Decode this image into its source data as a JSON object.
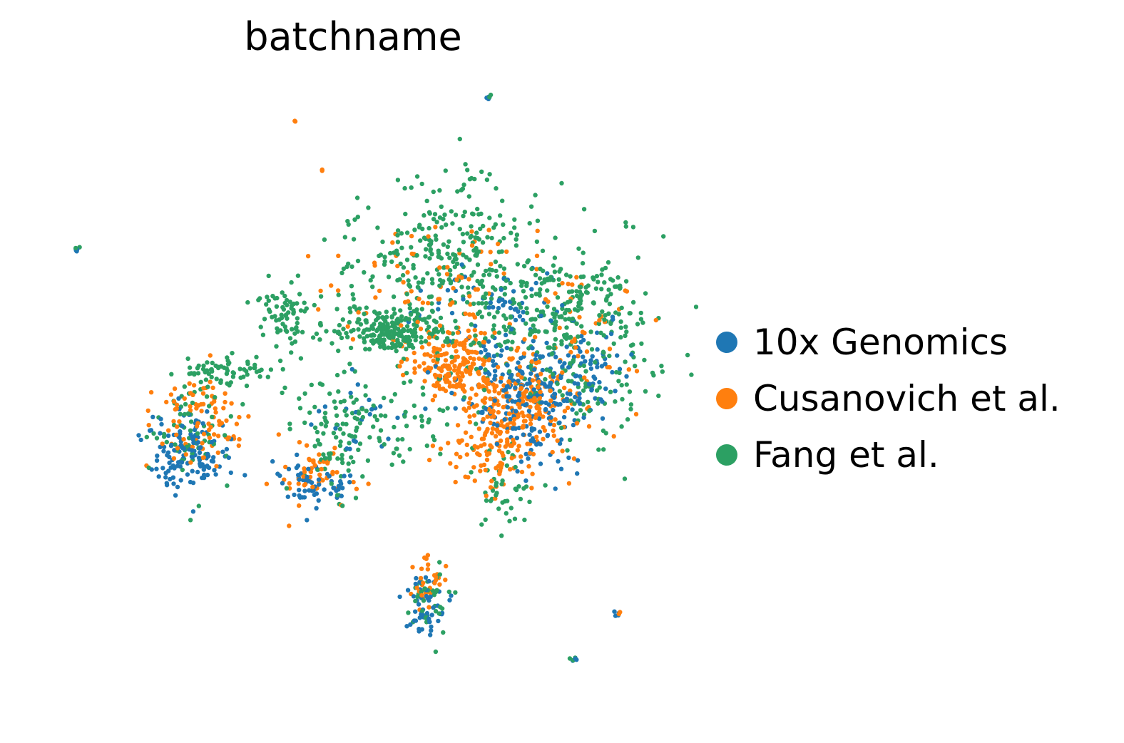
{
  "chart_data": {
    "type": "scatter",
    "title": "batchname",
    "xlabel": "",
    "ylabel": "",
    "axes_visible": false,
    "grid": false,
    "legend_position": "right",
    "xlim": [
      0,
      100
    ],
    "ylim": [
      0,
      100
    ],
    "series": [
      {
        "name": "10x Genomics",
        "color": "#1f77b4",
        "clusters": [
          {
            "x": 15.0,
            "y": 36.5,
            "sx": 1.9,
            "sy": 2.8,
            "n": 140
          },
          {
            "x": 26.5,
            "y": 32.0,
            "sx": 1.5,
            "sy": 1.8,
            "n": 60
          },
          {
            "x": 45.5,
            "y": 47.0,
            "sx": 2.8,
            "sy": 4.5,
            "n": 140
          },
          {
            "x": 48.0,
            "y": 42.0,
            "sx": 2.5,
            "sy": 4.0,
            "n": 100
          },
          {
            "x": 52.0,
            "y": 48.5,
            "sx": 2.0,
            "sy": 3.0,
            "n": 60
          },
          {
            "x": 37.0,
            "y": 14.0,
            "sx": 1.0,
            "sy": 2.5,
            "n": 50
          },
          {
            "x": 43.0,
            "y": 58.0,
            "sx": 3.5,
            "sy": 3.0,
            "n": 50
          },
          {
            "x": 30.0,
            "y": 41.0,
            "sx": 2.0,
            "sy": 3.0,
            "n": 25
          },
          {
            "x": 4.6,
            "y": 65.0,
            "sx": 0.2,
            "sy": 0.2,
            "n": 4
          },
          {
            "x": 43.0,
            "y": 86.5,
            "sx": 0.2,
            "sy": 0.2,
            "n": 4
          },
          {
            "x": 51.0,
            "y": 7.5,
            "sx": 0.2,
            "sy": 0.2,
            "n": 4
          },
          {
            "x": 55.0,
            "y": 14.0,
            "sx": 0.2,
            "sy": 0.2,
            "n": 4
          }
        ]
      },
      {
        "name": "Cusanovich et al.",
        "color": "#ff7f0e",
        "clusters": [
          {
            "x": 40.0,
            "y": 49.0,
            "sx": 2.0,
            "sy": 2.5,
            "n": 180
          },
          {
            "x": 45.0,
            "y": 43.0,
            "sx": 2.5,
            "sy": 3.5,
            "n": 200
          },
          {
            "x": 43.5,
            "y": 37.0,
            "sx": 2.0,
            "sy": 3.0,
            "n": 80
          },
          {
            "x": 16.0,
            "y": 41.0,
            "sx": 2.2,
            "sy": 3.5,
            "n": 90
          },
          {
            "x": 27.0,
            "y": 33.0,
            "sx": 1.5,
            "sy": 2.0,
            "n": 50
          },
          {
            "x": 37.5,
            "y": 18.5,
            "sx": 1.0,
            "sy": 2.0,
            "n": 30
          },
          {
            "x": 38.0,
            "y": 60.0,
            "sx": 6.0,
            "sy": 5.0,
            "n": 80
          },
          {
            "x": 51.0,
            "y": 50.0,
            "sx": 3.5,
            "sy": 6.0,
            "n": 60
          },
          {
            "x": 25.0,
            "y": 83.0,
            "sx": 0.15,
            "sy": 0.15,
            "n": 2
          },
          {
            "x": 27.3,
            "y": 76.0,
            "sx": 0.15,
            "sy": 0.15,
            "n": 2
          },
          {
            "x": 56.0,
            "y": 59.0,
            "sx": 0.2,
            "sy": 0.2,
            "n": 2
          },
          {
            "x": 55.0,
            "y": 14.0,
            "sx": 0.2,
            "sy": 0.2,
            "n": 2
          }
        ]
      },
      {
        "name": "Fang et al.",
        "color": "#2ca063",
        "clusters": [
          {
            "x": 34.0,
            "y": 53.5,
            "sx": 2.5,
            "sy": 1.5,
            "n": 220
          },
          {
            "x": 40.0,
            "y": 61.0,
            "sx": 6.0,
            "sy": 6.0,
            "n": 240
          },
          {
            "x": 48.0,
            "y": 56.0,
            "sx": 5.0,
            "sy": 5.0,
            "n": 160
          },
          {
            "x": 52.0,
            "y": 49.0,
            "sx": 3.5,
            "sy": 6.0,
            "n": 130
          },
          {
            "x": 24.0,
            "y": 56.5,
            "sx": 1.3,
            "sy": 2.5,
            "n": 70
          },
          {
            "x": 18.5,
            "y": 48.0,
            "sx": 2.5,
            "sy": 1.2,
            "n": 70
          },
          {
            "x": 15.0,
            "y": 39.5,
            "sx": 1.8,
            "sy": 3.5,
            "n": 60
          },
          {
            "x": 29.0,
            "y": 39.0,
            "sx": 2.0,
            "sy": 4.0,
            "n": 90
          },
          {
            "x": 34.0,
            "y": 41.0,
            "sx": 4.0,
            "sy": 3.0,
            "n": 60
          },
          {
            "x": 37.5,
            "y": 16.5,
            "sx": 1.0,
            "sy": 2.5,
            "n": 40
          },
          {
            "x": 44.5,
            "y": 31.0,
            "sx": 1.5,
            "sy": 2.5,
            "n": 40
          },
          {
            "x": 4.6,
            "y": 65.0,
            "sx": 0.2,
            "sy": 0.2,
            "n": 2
          },
          {
            "x": 43.0,
            "y": 86.5,
            "sx": 0.2,
            "sy": 0.2,
            "n": 2
          },
          {
            "x": 51.0,
            "y": 7.5,
            "sx": 0.2,
            "sy": 0.2,
            "n": 3
          },
          {
            "x": 56.0,
            "y": 68.5,
            "sx": 0.2,
            "sy": 0.2,
            "n": 2
          },
          {
            "x": 58.3,
            "y": 47.5,
            "sx": 0.2,
            "sy": 0.2,
            "n": 2
          },
          {
            "x": 38.0,
            "y": 66.0,
            "sx": 2.5,
            "sy": 3.0,
            "n": 60
          },
          {
            "x": 42.0,
            "y": 72.0,
            "sx": 1.5,
            "sy": 3.0,
            "n": 30
          },
          {
            "x": 52.5,
            "y": 58.0,
            "sx": 2.5,
            "sy": 3.0,
            "n": 50
          }
        ]
      }
    ]
  }
}
